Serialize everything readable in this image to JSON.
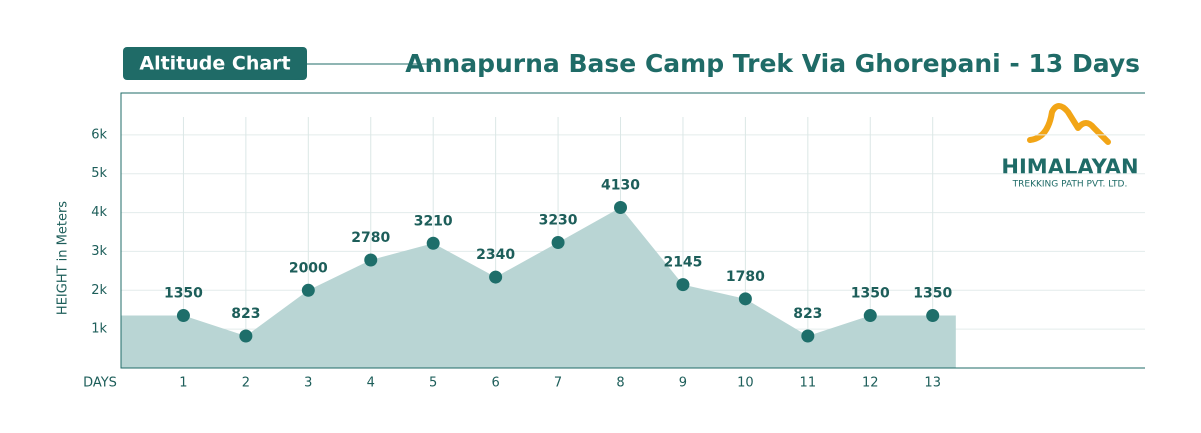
{
  "chart_data": {
    "type": "area",
    "badge": "Altitude Chart",
    "title": "Annapurna Base Camp Trek Via Ghorepani - 13 Days",
    "x_label": "DAYS",
    "y_label": "HEIGHT in Meters",
    "logo": {
      "name": "HIMALAYAN",
      "tagline": "TREKKING PATH PVT. LTD."
    },
    "x": [
      1,
      2,
      3,
      4,
      5,
      6,
      7,
      8,
      9,
      10,
      11,
      12,
      13
    ],
    "values": [
      1350,
      823,
      2000,
      2780,
      3210,
      2340,
      3230,
      4130,
      2145,
      1780,
      823,
      1350,
      1350
    ],
    "xlim": [
      0,
      16.4
    ],
    "ylim": [
      0,
      7000
    ],
    "xticks": [
      1,
      2,
      3,
      4,
      5,
      6,
      7,
      8,
      9,
      10,
      11,
      12,
      13
    ],
    "yticks": [
      {
        "value": 1000,
        "label": "1k"
      },
      {
        "value": 2000,
        "label": "2k"
      },
      {
        "value": 3000,
        "label": "3k"
      },
      {
        "value": 4000,
        "label": "4k"
      },
      {
        "value": 5000,
        "label": "5k"
      },
      {
        "value": 6000,
        "label": "6k"
      }
    ],
    "color": "#1e6e6a",
    "area_color": "#b9d5d4",
    "grid": true
  }
}
